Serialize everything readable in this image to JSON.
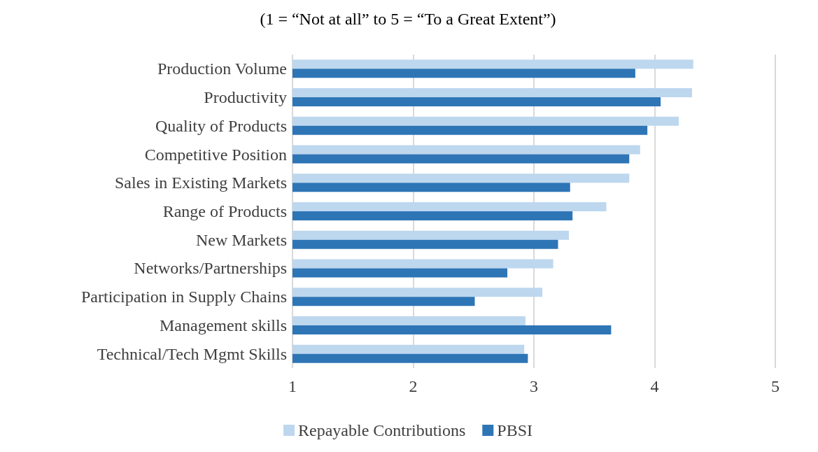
{
  "chart_data": {
    "type": "bar",
    "orientation": "horizontal",
    "title": "(1 = “Not at all” to 5 = “To a Great Extent”)",
    "categories": [
      "Production Volume",
      "Productivity",
      "Quality of Products",
      "Competitive Position",
      "Sales in Existing Markets",
      "Range of Products",
      "New Markets",
      "Networks/Partnerships",
      "Participation in Supply Chains",
      "Management skills",
      "Technical/Tech Mgmt Skills"
    ],
    "series": [
      {
        "name": "Repayable Contributions",
        "color": "#bdd7ee",
        "values": [
          4.32,
          4.31,
          4.2,
          3.88,
          3.79,
          3.6,
          3.29,
          3.16,
          3.07,
          2.93,
          2.92
        ]
      },
      {
        "name": "PBSI",
        "color": "#2e75b6",
        "values": [
          3.84,
          4.05,
          3.94,
          3.79,
          3.3,
          3.32,
          3.2,
          2.78,
          2.51,
          3.64,
          2.95
        ]
      }
    ],
    "xlim": [
      1,
      5
    ],
    "xticks": [
      1,
      2,
      3,
      4,
      5
    ],
    "grid": "x",
    "legend": "bottom"
  }
}
